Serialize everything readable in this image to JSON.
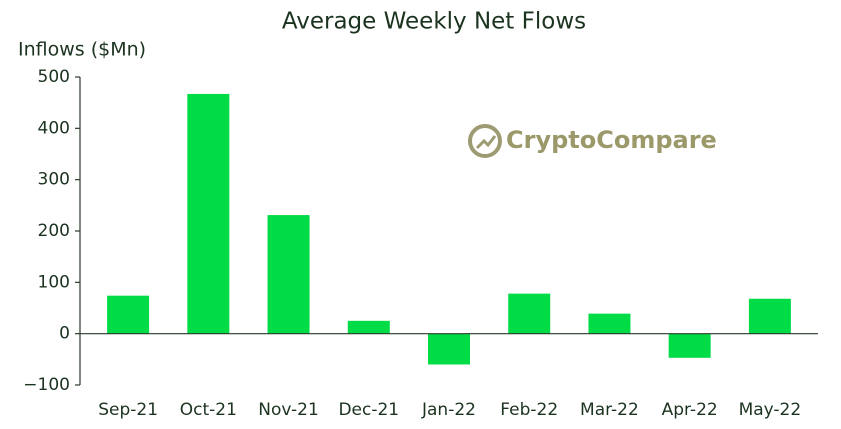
{
  "chart_data": {
    "type": "bar",
    "title": "Average Weekly Net Flows",
    "y_label": "Inflows ($Mn)",
    "watermark": "CryptoCompare",
    "categories": [
      "Sep-21",
      "Oct-21",
      "Nov-21",
      "Dec-21",
      "Jan-22",
      "Feb-22",
      "Mar-22",
      "Apr-22",
      "May-22"
    ],
    "values": [
      74,
      467,
      231,
      25,
      -60,
      78,
      39,
      -47,
      68
    ],
    "color": "#00dc46",
    "ylim": [
      -100,
      500
    ],
    "yticks": [
      {
        "value": -100,
        "label": "−100"
      },
      0,
      100,
      200,
      300,
      400,
      500
    ],
    "grid": false
  }
}
